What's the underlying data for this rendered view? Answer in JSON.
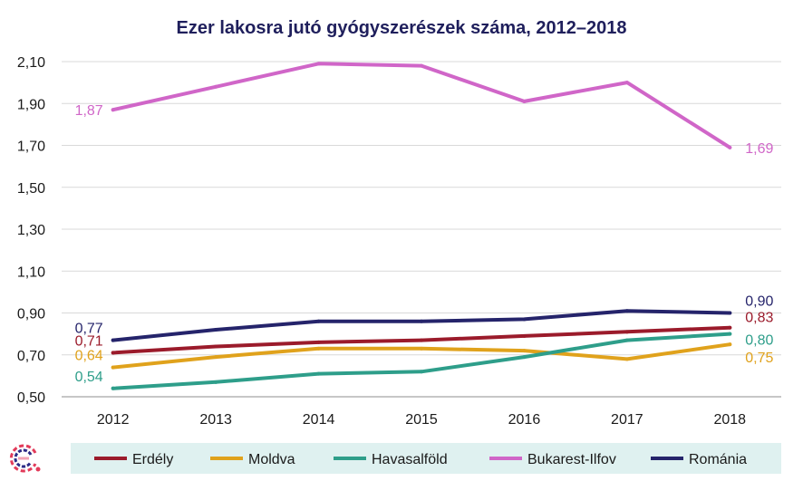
{
  "chart_data": {
    "type": "line",
    "title": "Ezer lakosra jutó gyógyszerészek száma, 2012–2018",
    "xlabel": "",
    "ylabel": "",
    "categories": [
      "2012",
      "2013",
      "2014",
      "2015",
      "2016",
      "2017",
      "2018"
    ],
    "ylim": [
      0.5,
      2.1
    ],
    "yticks": [
      "0,50",
      "0,70",
      "0,90",
      "1,10",
      "1,30",
      "1,50",
      "1,70",
      "1,90",
      "2,10"
    ],
    "grid": true,
    "legend_position": "bottom",
    "series": [
      {
        "name": "Erdély",
        "color": "#9b1b2b",
        "values": [
          0.71,
          0.74,
          0.76,
          0.77,
          0.79,
          0.81,
          0.83
        ],
        "start_label": "0,71",
        "end_label": "0,83"
      },
      {
        "name": "Moldva",
        "color": "#e0a21c",
        "values": [
          0.64,
          0.69,
          0.73,
          0.73,
          0.72,
          0.68,
          0.75
        ],
        "start_label": "0,64",
        "end_label": "0,75"
      },
      {
        "name": "Havasalföld",
        "color": "#2e9e8a",
        "values": [
          0.54,
          0.57,
          0.61,
          0.62,
          0.69,
          0.77,
          0.8
        ],
        "start_label": "0,54",
        "end_label": "0,80"
      },
      {
        "name": "Bukarest-Ilfov",
        "color": "#d066c8",
        "values": [
          1.87,
          1.98,
          2.09,
          2.08,
          1.91,
          2.0,
          1.69
        ],
        "start_label": "1,87",
        "end_label": "1,69"
      },
      {
        "name": "Románia",
        "color": "#25246b",
        "values": [
          0.77,
          0.82,
          0.86,
          0.86,
          0.87,
          0.91,
          0.9
        ],
        "start_label": "0,77",
        "end_label": "0,90"
      }
    ]
  },
  "colors": {
    "title": "#1f1f5c",
    "grid": "#d9d9d9",
    "axis": "#8c8c8c",
    "legend_background": "#dff1f0",
    "logo": [
      "#e23b5a",
      "#2d2b86",
      "#f2a1b3"
    ]
  },
  "icons": {
    "logo": "circular-e-logo-icon"
  }
}
